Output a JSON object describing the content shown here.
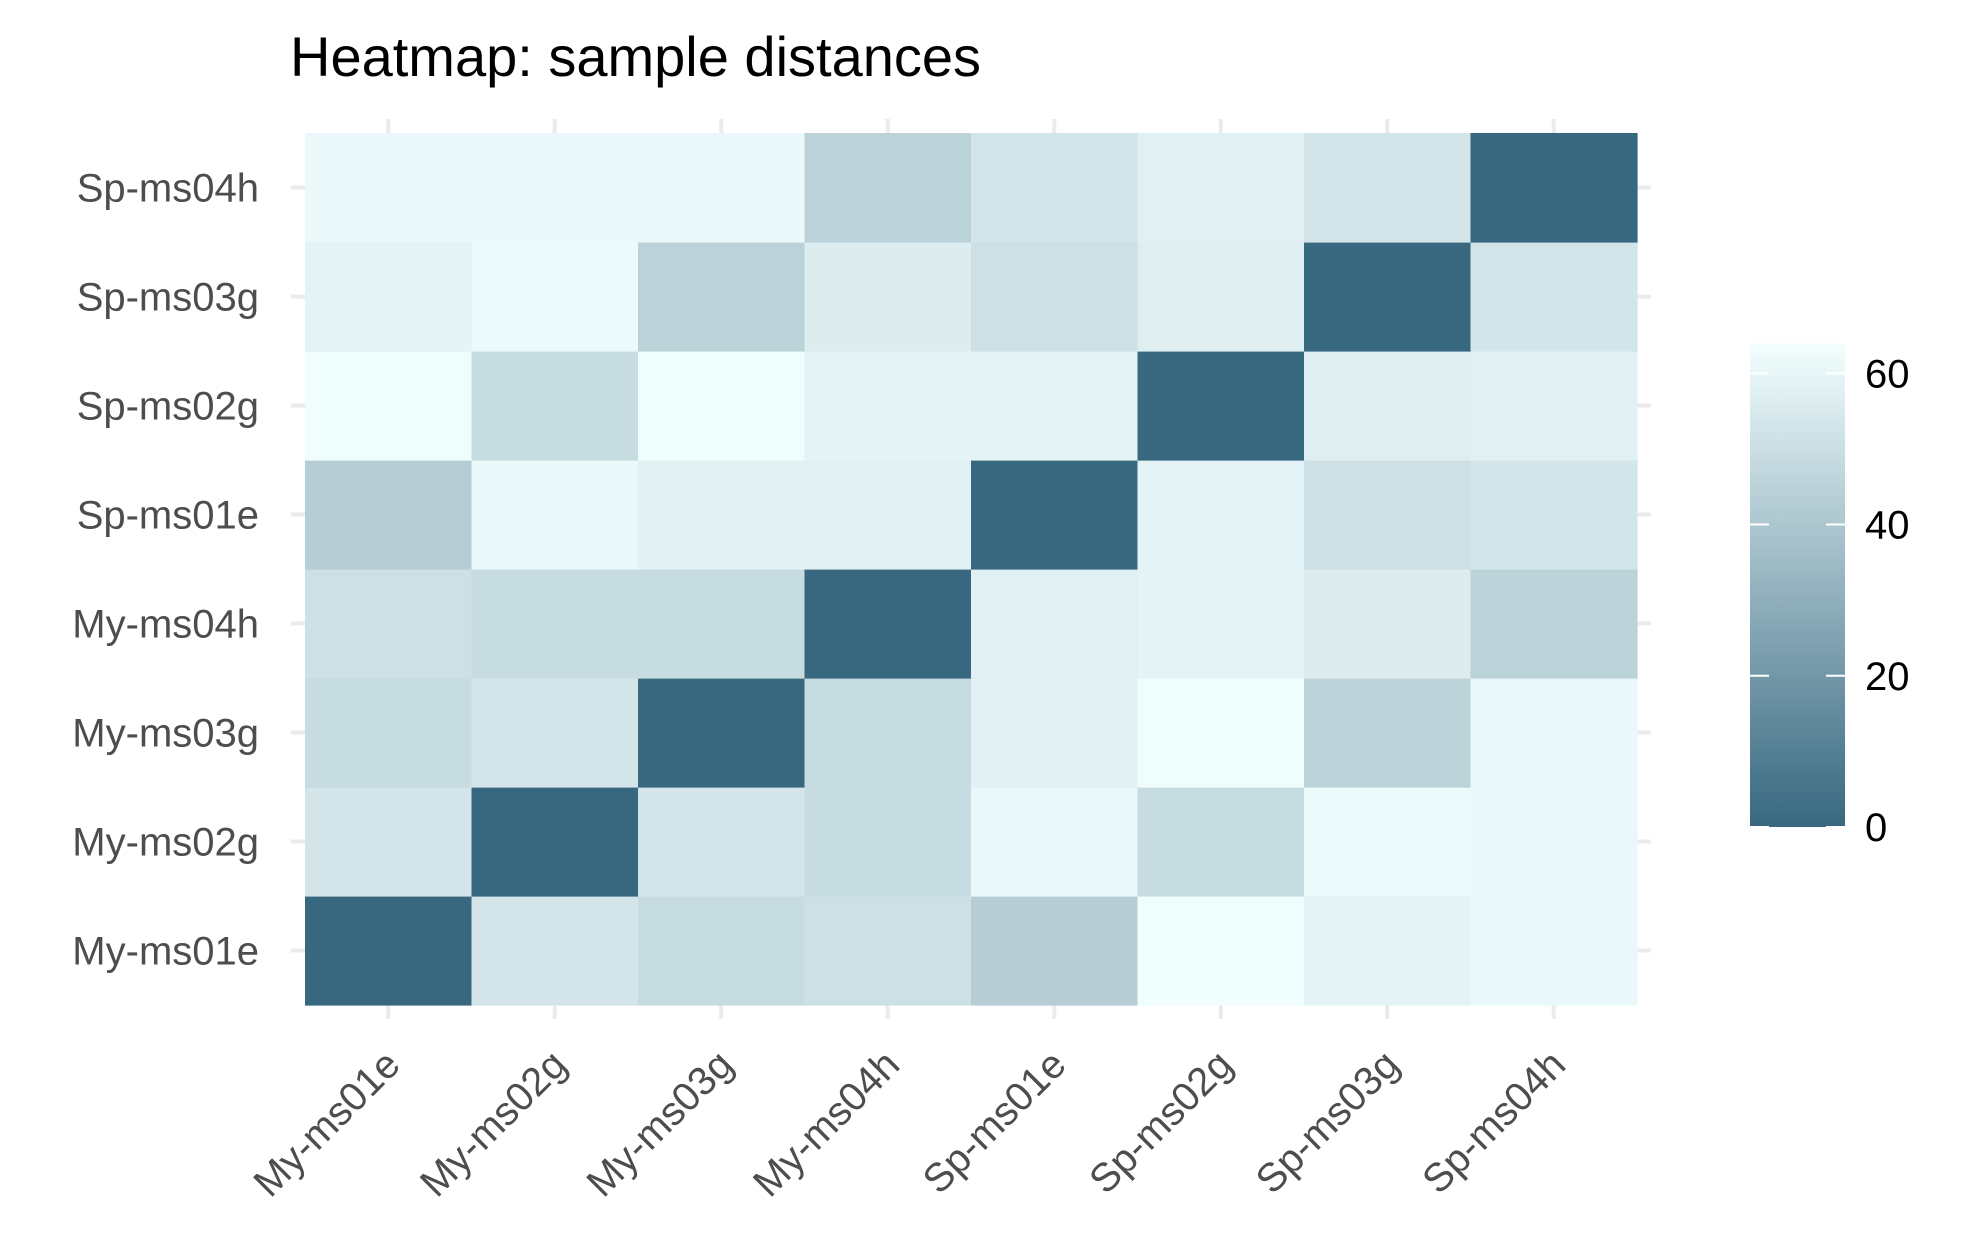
{
  "chart_data": {
    "type": "heatmap",
    "title": "Heatmap: sample distances",
    "xlabel": "",
    "ylabel": "",
    "x_categories": [
      "My-ms01e",
      "My-ms02g",
      "My-ms03g",
      "My-ms04h",
      "Sp-ms01e",
      "Sp-ms02g",
      "Sp-ms03g",
      "Sp-ms04h"
    ],
    "y_categories": [
      "My-ms01e",
      "My-ms02g",
      "My-ms03g",
      "My-ms04h",
      "Sp-ms01e",
      "Sp-ms02g",
      "Sp-ms03g",
      "Sp-ms04h"
    ],
    "values": [
      [
        0,
        53,
        49,
        51,
        43,
        63,
        59,
        61
      ],
      [
        53,
        0,
        53,
        49,
        61,
        49,
        62,
        61
      ],
      [
        49,
        53,
        0,
        49,
        58,
        63,
        45,
        61
      ],
      [
        51,
        49,
        49,
        0,
        58,
        59,
        56,
        45
      ],
      [
        43,
        61,
        58,
        58,
        0,
        59,
        51,
        53
      ],
      [
        63,
        49,
        63,
        59,
        59,
        0,
        57,
        58
      ],
      [
        59,
        62,
        45,
        56,
        51,
        57,
        0,
        53
      ],
      [
        61,
        61,
        61,
        45,
        53,
        58,
        53,
        0
      ]
    ],
    "color_scale": {
      "low_color": "#386880",
      "high_color": "#f3ffff",
      "range": [
        0,
        64
      ],
      "breaks": [
        "0",
        "20",
        "40",
        "60"
      ]
    },
    "legend_position": "right",
    "grid": true,
    "x_tick_rotation": "45 degrees"
  }
}
